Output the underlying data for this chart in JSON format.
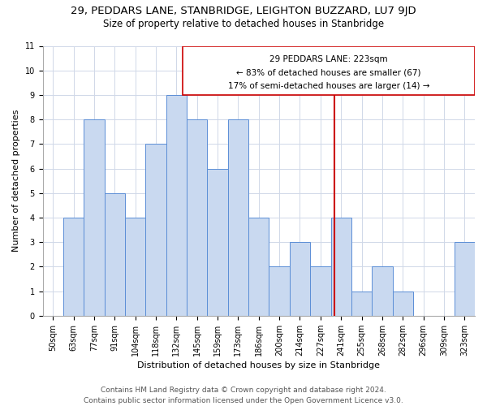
{
  "title1": "29, PEDDARS LANE, STANBRIDGE, LEIGHTON BUZZARD, LU7 9JD",
  "title2": "Size of property relative to detached houses in Stanbridge",
  "xlabel": "Distribution of detached houses by size in Stanbridge",
  "ylabel": "Number of detached properties",
  "categories": [
    "50sqm",
    "63sqm",
    "77sqm",
    "91sqm",
    "104sqm",
    "118sqm",
    "132sqm",
    "145sqm",
    "159sqm",
    "173sqm",
    "186sqm",
    "200sqm",
    "214sqm",
    "227sqm",
    "241sqm",
    "255sqm",
    "268sqm",
    "282sqm",
    "296sqm",
    "309sqm",
    "323sqm"
  ],
  "values": [
    0,
    4,
    8,
    5,
    4,
    7,
    9,
    8,
    6,
    8,
    4,
    2,
    3,
    2,
    4,
    1,
    2,
    1,
    0,
    0,
    3
  ],
  "bar_color": "#c9d9f0",
  "bar_edge_color": "#5b8ed6",
  "annotation_line1": "29 PEDDARS LANE: 223sqm",
  "annotation_line2": "← 83% of detached houses are smaller (67)",
  "annotation_line3": "17% of semi-detached houses are larger (14) →",
  "ylim_max": 11,
  "yticks": [
    0,
    1,
    2,
    3,
    4,
    5,
    6,
    7,
    8,
    9,
    10,
    11
  ],
  "footer1": "Contains HM Land Registry data © Crown copyright and database right 2024.",
  "footer2": "Contains public sector information licensed under the Open Government Licence v3.0.",
  "grid_color": "#d0d8e8",
  "subject_line_color": "#cc0000",
  "annotation_box_color": "#cc0000",
  "title1_fontsize": 9.5,
  "title2_fontsize": 8.5,
  "xlabel_fontsize": 8,
  "ylabel_fontsize": 8,
  "tick_fontsize": 7,
  "annotation_fontsize": 7.5,
  "footer_fontsize": 6.5
}
